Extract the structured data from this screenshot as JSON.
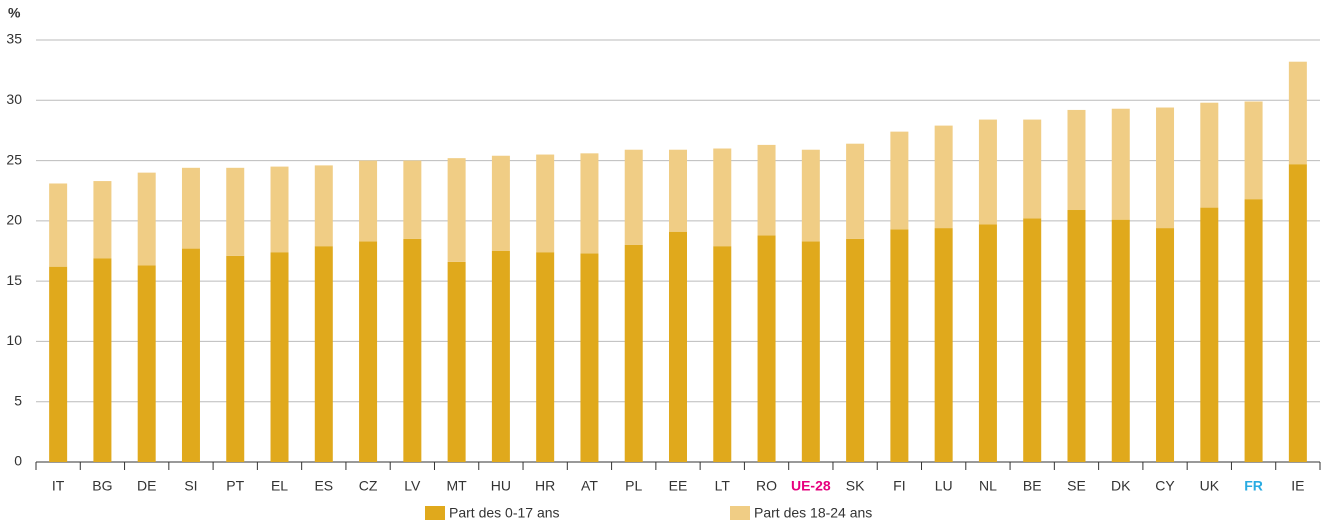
{
  "chart_data": {
    "type": "stacked_bar",
    "y_label": "%",
    "categories": [
      "IT",
      "BG",
      "DE",
      "SI",
      "PT",
      "EL",
      "ES",
      "CZ",
      "LV",
      "MT",
      "HU",
      "HR",
      "AT",
      "PL",
      "EE",
      "LT",
      "RO",
      "UE-28",
      "SK",
      "FI",
      "LU",
      "NL",
      "BE",
      "SE",
      "DK",
      "CY",
      "UK",
      "FR",
      "IE"
    ],
    "category_colors": [
      "#333333",
      "#333333",
      "#333333",
      "#333333",
      "#333333",
      "#333333",
      "#333333",
      "#333333",
      "#333333",
      "#333333",
      "#333333",
      "#333333",
      "#333333",
      "#333333",
      "#333333",
      "#333333",
      "#333333",
      "#e6007e",
      "#333333",
      "#333333",
      "#333333",
      "#333333",
      "#333333",
      "#333333",
      "#333333",
      "#333333",
      "#333333",
      "#29abe2",
      "#333333"
    ],
    "series": [
      {
        "name": "Part des 0-17 ans",
        "color": "#e0a91c",
        "values": [
          16.2,
          16.9,
          16.3,
          17.7,
          17.1,
          17.4,
          17.9,
          18.3,
          18.5,
          16.6,
          17.5,
          17.4,
          17.3,
          18.0,
          19.1,
          17.9,
          18.8,
          18.3,
          18.5,
          19.3,
          19.4,
          19.7,
          20.2,
          20.9,
          20.1,
          19.4,
          21.1,
          21.8,
          24.7
        ]
      },
      {
        "name": "Part des 18-24 ans",
        "color": "#f0cd85",
        "values": [
          6.9,
          6.4,
          7.7,
          6.7,
          7.3,
          7.1,
          6.7,
          6.7,
          6.5,
          8.6,
          7.9,
          8.1,
          8.3,
          7.9,
          6.8,
          8.1,
          7.5,
          7.6,
          7.9,
          8.1,
          8.5,
          8.7,
          8.2,
          8.3,
          9.2,
          10.0,
          8.7,
          8.1,
          8.5
        ]
      }
    ],
    "ylim": [
      0,
      35
    ],
    "yticks": [
      0,
      5,
      10,
      15,
      20,
      25,
      30,
      35
    ],
    "grid": true
  }
}
